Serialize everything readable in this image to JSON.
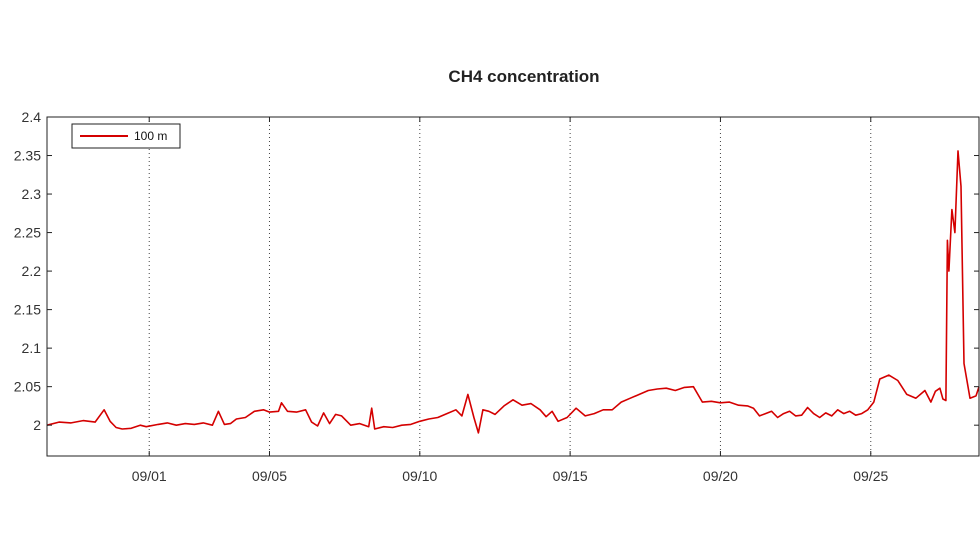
{
  "chart_data": {
    "type": "line",
    "title": "CH4 concentration",
    "xlabel": "",
    "ylabel": "",
    "xlim": [
      -3.4,
      27.6
    ],
    "ylim": [
      1.96,
      2.4
    ],
    "x_tick_values": [
      0,
      4,
      9,
      14,
      19,
      24
    ],
    "x_tick_labels": [
      "09/01",
      "09/05",
      "09/10",
      "09/15",
      "09/20",
      "09/25"
    ],
    "y_tick_values": [
      2,
      2.05,
      2.1,
      2.15,
      2.2,
      2.25,
      2.3,
      2.35,
      2.4
    ],
    "y_tick_labels": [
      "2",
      "2.05",
      "2.1",
      "2.15",
      "2.2",
      "2.25",
      "2.3",
      "2.35",
      "2.4"
    ],
    "grid": "vertical-dotted",
    "legend_position": "top-left",
    "series": [
      {
        "name": "100 m",
        "color": "#d40000",
        "x": [
          -3.4,
          -3.0,
          -2.6,
          -2.2,
          -1.8,
          -1.5,
          -1.3,
          -1.1,
          -0.9,
          -0.6,
          -0.3,
          -0.1,
          0.3,
          0.6,
          0.9,
          1.2,
          1.5,
          1.8,
          2.1,
          2.3,
          2.5,
          2.7,
          2.9,
          3.2,
          3.5,
          3.8,
          4.0,
          4.3,
          4.4,
          4.6,
          4.9,
          5.2,
          5.4,
          5.6,
          5.8,
          6.0,
          6.2,
          6.4,
          6.7,
          7.0,
          7.3,
          7.4,
          7.5,
          7.8,
          8.1,
          8.4,
          8.7,
          9.0,
          9.3,
          9.6,
          9.9,
          10.2,
          10.4,
          10.6,
          10.8,
          10.95,
          11.1,
          11.3,
          11.5,
          11.8,
          12.1,
          12.4,
          12.7,
          13.0,
          13.2,
          13.4,
          13.6,
          13.9,
          14.2,
          14.5,
          14.8,
          15.1,
          15.4,
          15.7,
          16.0,
          16.3,
          16.6,
          16.9,
          17.2,
          17.5,
          17.8,
          18.1,
          18.4,
          18.7,
          19.0,
          19.3,
          19.6,
          19.9,
          20.1,
          20.3,
          20.5,
          20.7,
          20.9,
          21.1,
          21.3,
          21.5,
          21.7,
          21.9,
          22.1,
          22.3,
          22.5,
          22.7,
          22.9,
          23.1,
          23.3,
          23.5,
          23.7,
          23.9,
          24.1,
          24.3,
          24.6,
          24.9,
          25.2,
          25.5,
          25.8,
          26.0,
          26.15,
          26.3,
          26.4,
          26.5,
          26.55,
          26.6,
          26.7,
          26.8,
          26.9,
          27.0,
          27.1,
          27.3,
          27.5,
          27.6
        ],
        "values": [
          2.0,
          2.004,
          2.003,
          2.006,
          2.004,
          2.02,
          2.005,
          1.997,
          1.995,
          1.996,
          2.0,
          1.998,
          2.001,
          2.003,
          2.0,
          2.002,
          2.001,
          2.003,
          2.0,
          2.018,
          2.001,
          2.002,
          2.008,
          2.01,
          2.018,
          2.02,
          2.017,
          2.018,
          2.029,
          2.018,
          2.017,
          2.02,
          2.004,
          1.999,
          2.016,
          2.002,
          2.014,
          2.012,
          2.0,
          2.002,
          1.998,
          2.022,
          1.995,
          1.998,
          1.997,
          2.0,
          2.001,
          2.005,
          2.008,
          2.01,
          2.015,
          2.02,
          2.012,
          2.04,
          2.01,
          1.99,
          2.02,
          2.018,
          2.014,
          2.025,
          2.033,
          2.026,
          2.028,
          2.02,
          2.011,
          2.018,
          2.005,
          2.01,
          2.022,
          2.012,
          2.015,
          2.02,
          2.02,
          2.03,
          2.035,
          2.04,
          2.045,
          2.047,
          2.048,
          2.045,
          2.049,
          2.05,
          2.03,
          2.031,
          2.029,
          2.03,
          2.026,
          2.025,
          2.022,
          2.012,
          2.015,
          2.018,
          2.01,
          2.015,
          2.018,
          2.012,
          2.013,
          2.023,
          2.015,
          2.01,
          2.016,
          2.012,
          2.02,
          2.015,
          2.018,
          2.013,
          2.015,
          2.02,
          2.03,
          2.06,
          2.065,
          2.058,
          2.04,
          2.035,
          2.045,
          2.03,
          2.044,
          2.048,
          2.034,
          2.032,
          2.24,
          2.2,
          2.28,
          2.25,
          2.356,
          2.31,
          2.08,
          2.035,
          2.038,
          2.05
        ]
      }
    ]
  }
}
